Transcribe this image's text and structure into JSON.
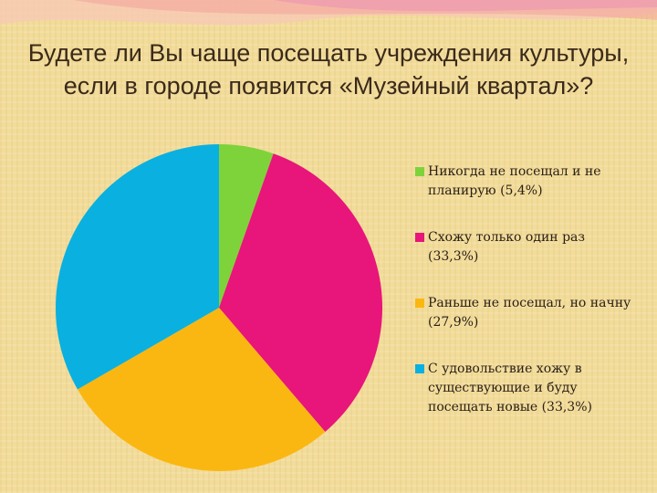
{
  "title": "Будете ли Вы чаще посещать учреждения культуры, если в городе появится «Музейный квартал»?",
  "chart_data": {
    "type": "pie",
    "title": "Будете ли Вы чаще посещать учреждения культуры, если в городе появится «Музейный квартал»?",
    "slices": [
      {
        "label": "Никогда не посещал и не планирую (5,4%)",
        "value": 5.4,
        "color": "#7ed33a"
      },
      {
        "label": "Схожу только один раз (33,3%)",
        "value": 33.3,
        "color": "#e8157a"
      },
      {
        "label": "Раньше не посещал, но начну (27,9%)",
        "value": 27.9,
        "color": "#fbb711"
      },
      {
        "label": "С удовольствие хожу в существующие и буду посещать новые (33,3%)",
        "value": 33.3,
        "color": "#0ab0e0"
      }
    ],
    "legend_position": "right",
    "start_angle": "top, clockwise"
  }
}
